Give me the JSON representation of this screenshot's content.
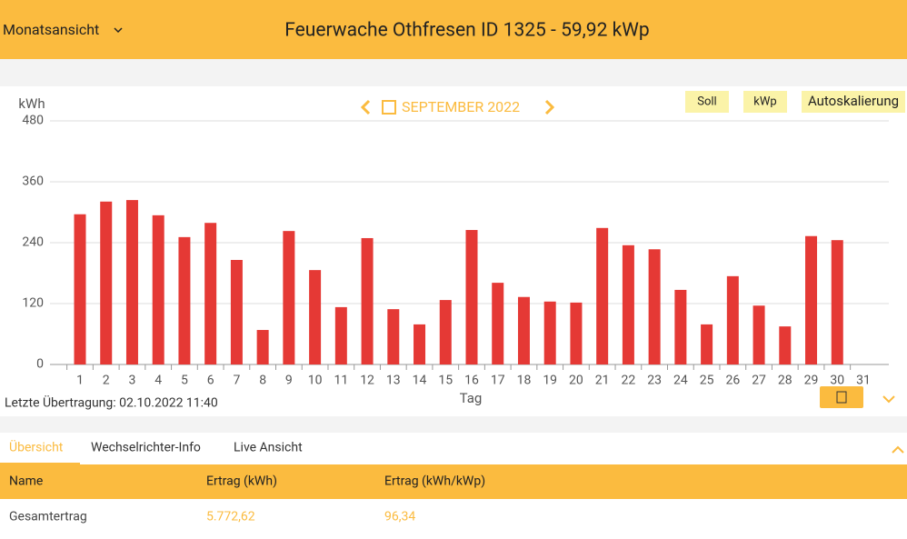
{
  "header": {
    "view": "Monatsansicht",
    "title": "Feuerwache Othfresen ID 1325 - 59,92 kWp"
  },
  "chart_data": {
    "type": "bar",
    "period": "SEPTEMBER 2022",
    "y_label": "kWh",
    "x_label": "Tag",
    "categories": [
      "1",
      "2",
      "3",
      "4",
      "5",
      "6",
      "7",
      "8",
      "9",
      "10",
      "11",
      "12",
      "13",
      "14",
      "15",
      "16",
      "17",
      "18",
      "19",
      "20",
      "21",
      "22",
      "23",
      "24",
      "25",
      "26",
      "27",
      "28",
      "29",
      "30",
      "31"
    ],
    "values": [
      296,
      321,
      324,
      294,
      251,
      279,
      206,
      68,
      263,
      186,
      113,
      249,
      109,
      79,
      127,
      265,
      161,
      133,
      124,
      122,
      269,
      235,
      227,
      147,
      79,
      174,
      116,
      75,
      253,
      245,
      null
    ],
    "color": "#e53935",
    "ylim": [
      0,
      480
    ],
    "yticks": [
      0,
      120,
      240,
      360,
      480
    ],
    "grid": true,
    "buttons": [
      "Soll",
      "kWp",
      "Autoskalierung"
    ]
  },
  "status": "Letzte Übertragung: 02.10.2022 11:40",
  "tabs": [
    "Übersicht",
    "Wechselrichter-Info",
    "Live Ansicht"
  ],
  "table": {
    "columns": [
      "Name",
      "Ertrag (kWh)",
      "Ertrag (kWh/kWp)"
    ],
    "rows": [
      [
        "Gesamtertrag",
        "5.772,62",
        "96,34"
      ]
    ]
  }
}
